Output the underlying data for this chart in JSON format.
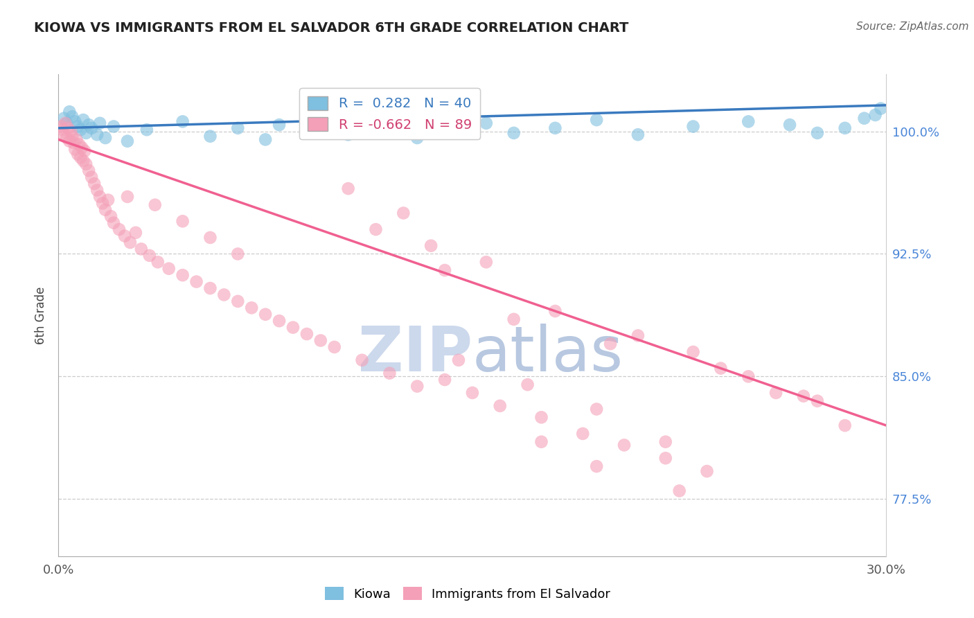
{
  "title": "KIOWA VS IMMIGRANTS FROM EL SALVADOR 6TH GRADE CORRELATION CHART",
  "source_text": "Source: ZipAtlas.com",
  "ylabel": "6th Grade",
  "x_min": 0.0,
  "x_max": 30.0,
  "y_min": 74.0,
  "y_max": 103.5,
  "y_ticks": [
    77.5,
    85.0,
    92.5,
    100.0
  ],
  "x_ticks": [
    0.0,
    30.0
  ],
  "x_tick_labels": [
    "0.0%",
    "30.0%"
  ],
  "y_tick_labels": [
    "77.5%",
    "85.0%",
    "92.5%",
    "100.0%"
  ],
  "blue_R": 0.282,
  "blue_N": 40,
  "pink_R": -0.662,
  "pink_N": 89,
  "blue_color": "#7fbfdf",
  "pink_color": "#f4a0b8",
  "blue_line_color": "#3a7abf",
  "pink_line_color": "#f06090",
  "watermark_color": "#ccd8ec",
  "legend_label_blue": "Kiowa",
  "legend_label_pink": "Immigrants from El Salvador",
  "blue_line_x0": 0.0,
  "blue_line_y0": 100.2,
  "blue_line_x1": 30.0,
  "blue_line_y1": 101.6,
  "pink_line_x0": 0.0,
  "pink_line_y0": 99.5,
  "pink_line_x1": 30.0,
  "pink_line_y1": 82.0,
  "blue_points_x": [
    0.2,
    0.3,
    0.4,
    0.5,
    0.6,
    0.7,
    0.8,
    0.9,
    1.0,
    1.1,
    1.2,
    1.4,
    1.5,
    1.7,
    2.0,
    2.5,
    3.2,
    4.5,
    5.5,
    6.5,
    7.5,
    8.0,
    9.5,
    10.5,
    11.5,
    13.0,
    14.5,
    15.5,
    16.5,
    18.0,
    19.5,
    21.0,
    23.0,
    25.0,
    26.5,
    27.5,
    28.5,
    29.2,
    29.6,
    29.8
  ],
  "blue_points_y": [
    100.8,
    100.5,
    101.2,
    100.9,
    100.6,
    100.3,
    100.1,
    100.7,
    99.9,
    100.4,
    100.2,
    99.8,
    100.5,
    99.6,
    100.3,
    99.4,
    100.1,
    100.6,
    99.7,
    100.2,
    99.5,
    100.4,
    100.0,
    99.8,
    100.3,
    99.6,
    100.1,
    100.5,
    99.9,
    100.2,
    100.7,
    99.8,
    100.3,
    100.6,
    100.4,
    99.9,
    100.2,
    100.8,
    101.0,
    101.4
  ],
  "pink_points_x": [
    0.1,
    0.15,
    0.2,
    0.25,
    0.3,
    0.35,
    0.4,
    0.45,
    0.5,
    0.55,
    0.6,
    0.65,
    0.7,
    0.75,
    0.8,
    0.85,
    0.9,
    0.95,
    1.0,
    1.1,
    1.2,
    1.3,
    1.4,
    1.5,
    1.6,
    1.7,
    1.8,
    1.9,
    2.0,
    2.2,
    2.4,
    2.6,
    2.8,
    3.0,
    3.3,
    3.6,
    4.0,
    4.5,
    5.0,
    5.5,
    6.0,
    6.5,
    7.0,
    7.5,
    8.0,
    8.5,
    9.0,
    9.5,
    10.0,
    11.0,
    12.0,
    13.0,
    14.0,
    15.0,
    16.0,
    17.5,
    19.0,
    20.5,
    22.0,
    23.5,
    14.5,
    17.0,
    19.5,
    22.0,
    14.0,
    18.0,
    21.0,
    23.0,
    25.0,
    26.0,
    27.5,
    28.5,
    16.5,
    20.0,
    24.0,
    27.0,
    13.5,
    11.5,
    15.5,
    12.5,
    10.5,
    17.5,
    19.5,
    22.5,
    6.5,
    5.5,
    4.5,
    3.5,
    2.5
  ],
  "pink_points_y": [
    100.3,
    100.1,
    99.8,
    100.5,
    99.6,
    100.2,
    99.4,
    100.0,
    99.7,
    99.3,
    98.9,
    99.5,
    98.6,
    99.2,
    98.4,
    99.0,
    98.2,
    98.8,
    98.0,
    97.6,
    97.2,
    96.8,
    96.4,
    96.0,
    95.6,
    95.2,
    95.8,
    94.8,
    94.4,
    94.0,
    93.6,
    93.2,
    93.8,
    92.8,
    92.4,
    92.0,
    91.6,
    91.2,
    90.8,
    90.4,
    90.0,
    89.6,
    89.2,
    88.8,
    88.4,
    88.0,
    87.6,
    87.2,
    86.8,
    86.0,
    85.2,
    84.4,
    84.8,
    84.0,
    83.2,
    82.5,
    81.5,
    80.8,
    80.0,
    79.2,
    86.0,
    84.5,
    83.0,
    81.0,
    91.5,
    89.0,
    87.5,
    86.5,
    85.0,
    84.0,
    83.5,
    82.0,
    88.5,
    87.0,
    85.5,
    83.8,
    93.0,
    94.0,
    92.0,
    95.0,
    96.5,
    81.0,
    79.5,
    78.0,
    92.5,
    93.5,
    94.5,
    95.5,
    96.0
  ]
}
